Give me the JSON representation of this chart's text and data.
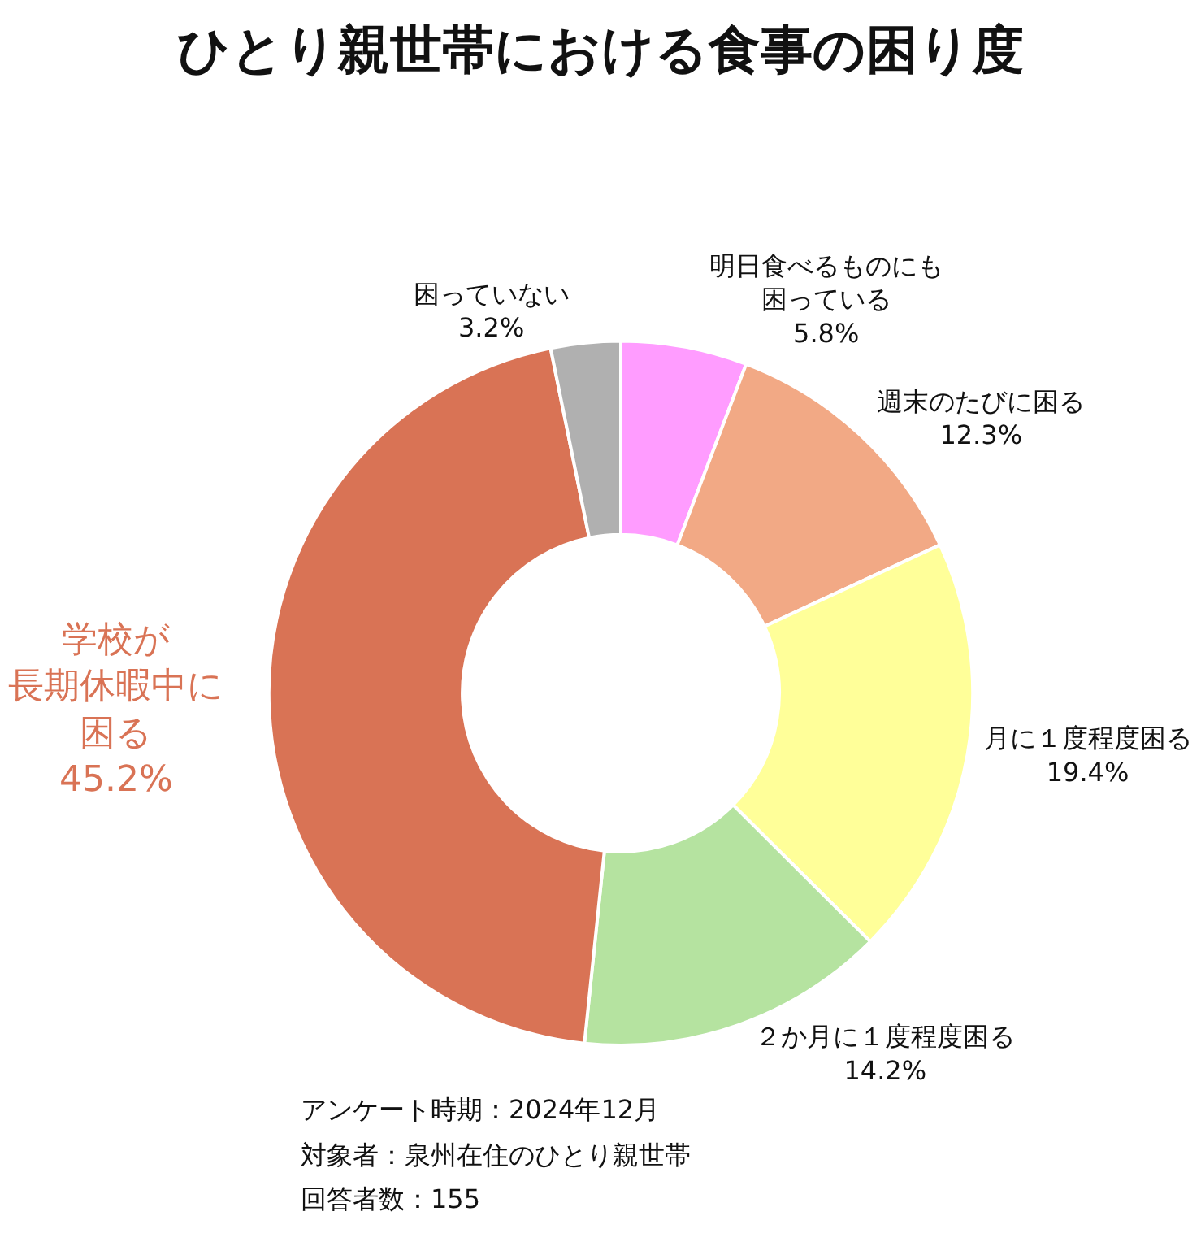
{
  "chart_data": {
    "type": "donut",
    "title": "ひとり親世帯における食事の困り度",
    "categories": [
      "明日食べるものにも困っている",
      "週末のたびに困る",
      "月に１度程度困る",
      "２か月に１度程度困る",
      "学校が長期休暇中に困る",
      "困っていない"
    ],
    "value_labels": [
      "5.8%",
      "12.3%",
      "19.4%",
      "14.2%",
      "45.2%",
      "3.2%"
    ],
    "values": [
      5.8,
      12.3,
      19.4,
      14.2,
      45.2,
      3.2
    ],
    "colors": [
      "#ff9cff",
      "#f2a985",
      "#ffff99",
      "#b5e3a0",
      "#d97355",
      "#b0b0b0"
    ],
    "annotations": [
      "アンケート時期：2024年12月",
      "対象者：泉州在住のひとり親世帯",
      "回答者数：155"
    ],
    "legend": false
  }
}
